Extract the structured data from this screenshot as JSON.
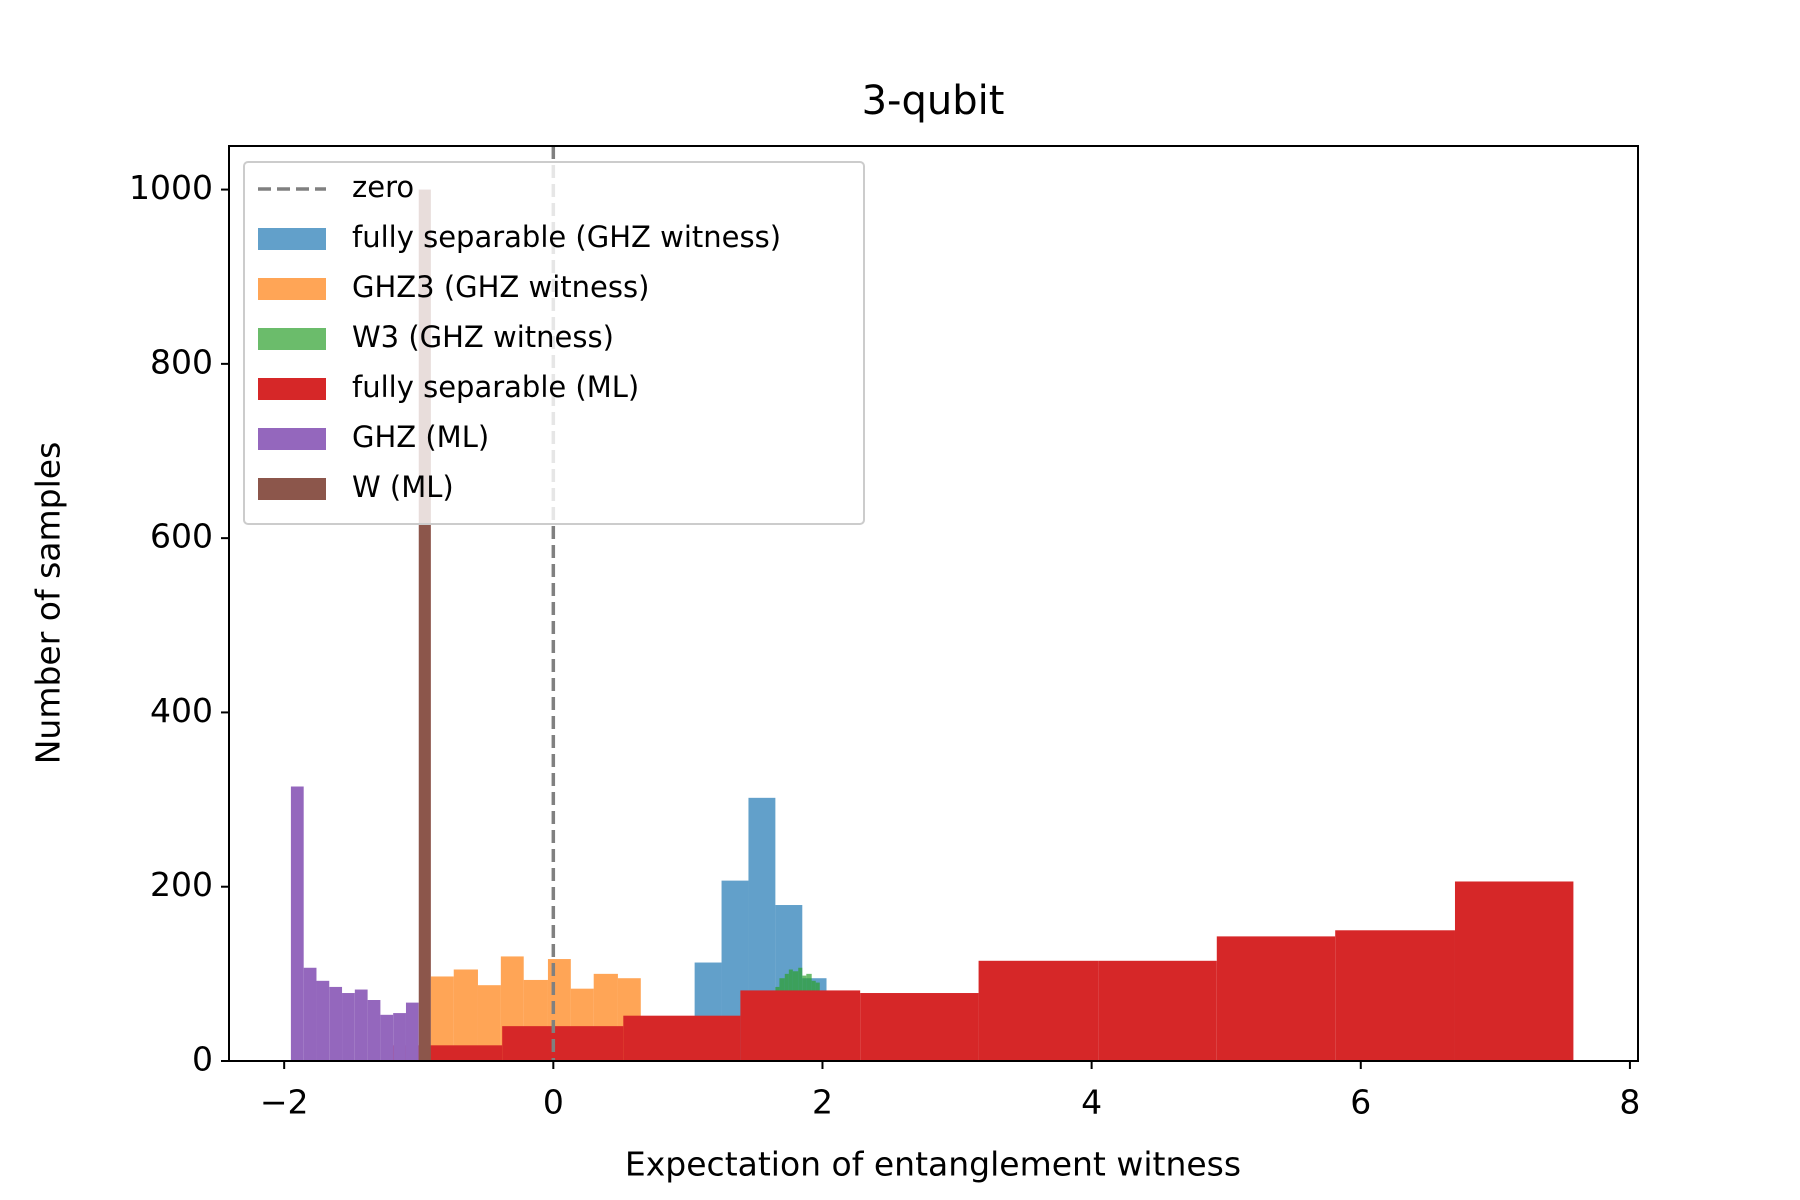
{
  "chart_data": {
    "type": "histogram",
    "title": "3-qubit",
    "x_label": "Expectation of entanglement witness",
    "y_label": "Number of samples",
    "xlim": [
      -2.41,
      8.06
    ],
    "ylim": [
      0,
      1050
    ],
    "xticks": [
      {
        "value": -2,
        "label": "−2"
      },
      0,
      2,
      4,
      6,
      8
    ],
    "yticks": [
      0,
      200,
      400,
      600,
      800,
      1000
    ],
    "legend": "upper left",
    "vline": {
      "name": "zero",
      "x": 0,
      "color": "#808080"
    },
    "series": [
      {
        "name": "fully separable (GHZ witness)",
        "color": "#1f77b4",
        "opacity": 0.7,
        "bins": [
          1.05,
          1.25,
          1.45,
          1.65,
          1.85,
          2.03
        ],
        "values": [
          113,
          207,
          302,
          179,
          95
        ]
      },
      {
        "name": "GHZ3 (GHZ witness)",
        "color": "#ff7f0e",
        "opacity": 0.7,
        "bins": [
          -0.91,
          -0.74,
          -0.56,
          -0.39,
          -0.22,
          -0.04,
          0.13,
          0.3,
          0.48,
          0.65
        ],
        "values": [
          97,
          105,
          87,
          120,
          93,
          117,
          83,
          100,
          95
        ]
      },
      {
        "name": "W3 (GHZ witness)",
        "color": "#2ca02c",
        "opacity": 0.7,
        "bins": [
          1.65,
          1.68,
          1.72,
          1.75,
          1.78,
          1.82,
          1.85,
          1.88,
          1.92,
          1.95,
          1.98
        ],
        "values": [
          85,
          95,
          100,
          105,
          103,
          107,
          98,
          100,
          92,
          90
        ]
      },
      {
        "name": "fully separable (ML)",
        "color": "#d62728",
        "opacity": 1,
        "bins": [
          -1.25,
          -0.38,
          0.52,
          1.39,
          2.28,
          3.16,
          4.05,
          4.93,
          5.81,
          6.7,
          7.58
        ],
        "values": [
          18,
          40,
          52,
          81,
          78,
          115,
          115,
          143,
          150,
          206
        ]
      },
      {
        "name": "GHZ (ML)",
        "color": "#9467bd",
        "opacity": 1,
        "bins": [
          -1.95,
          -1.855,
          -1.76,
          -1.665,
          -1.57,
          -1.475,
          -1.38,
          -1.285,
          -1.19,
          -1.095,
          -1.0
        ],
        "values": [
          315,
          107,
          92,
          85,
          78,
          82,
          70,
          53,
          55,
          67
        ]
      },
      {
        "name": "W (ML)",
        "color": "#8c564b",
        "opacity": 1,
        "bins": [
          -1.0,
          -0.91
        ],
        "values": [
          1000
        ]
      }
    ]
  }
}
